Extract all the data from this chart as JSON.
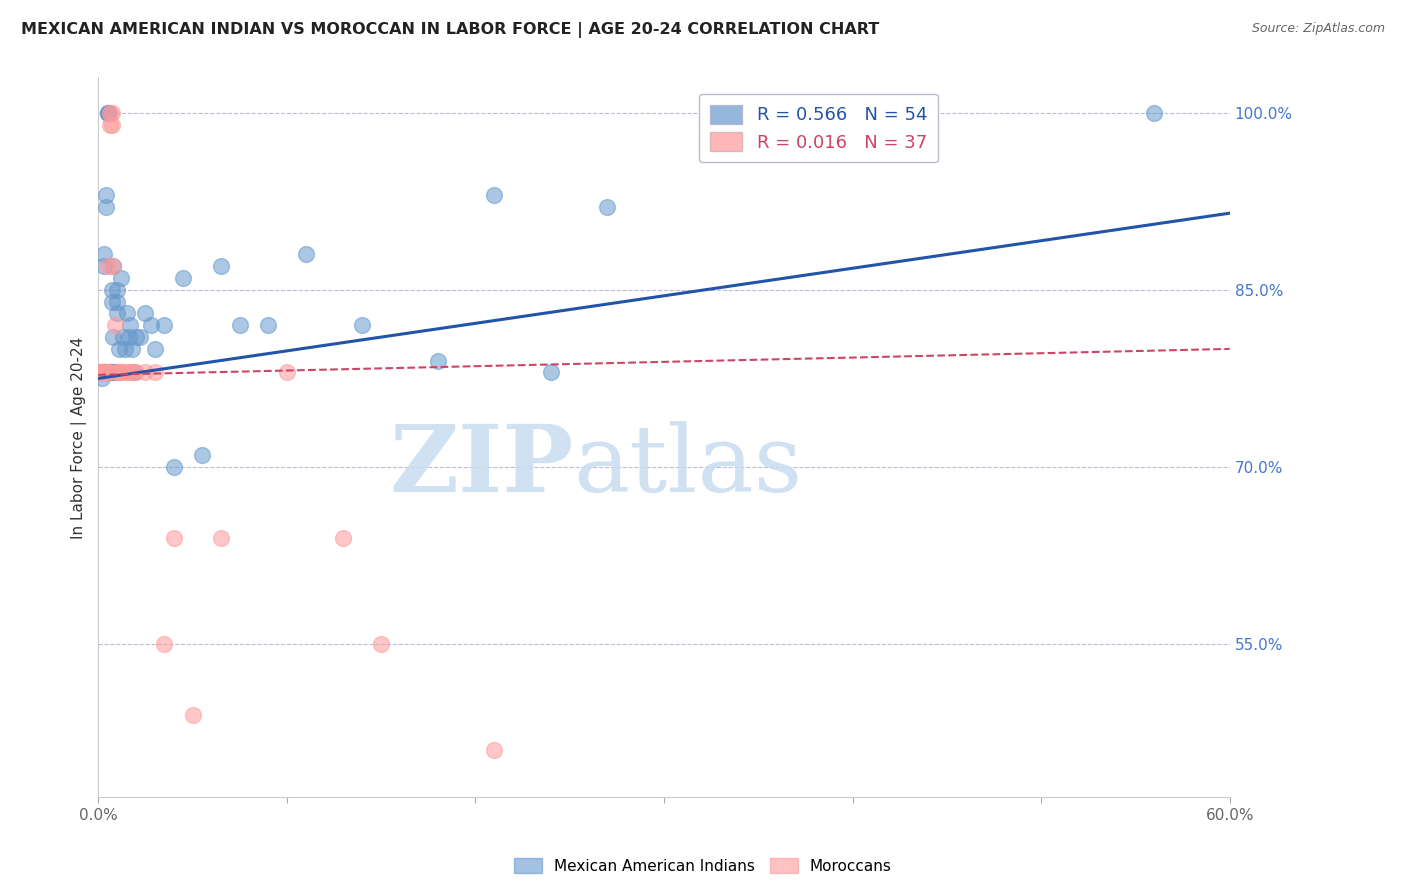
{
  "title": "MEXICAN AMERICAN INDIAN VS MOROCCAN IN LABOR FORCE | AGE 20-24 CORRELATION CHART",
  "source": "Source: ZipAtlas.com",
  "ylabel": "In Labor Force | Age 20-24",
  "xlim": [
    0.0,
    0.6
  ],
  "ylim": [
    0.42,
    1.03
  ],
  "xticks": [
    0.0,
    0.1,
    0.2,
    0.3,
    0.4,
    0.5,
    0.6
  ],
  "xticklabels": [
    "0.0%",
    "",
    "",
    "",
    "",
    "",
    "60.0%"
  ],
  "yticks_right": [
    0.55,
    0.7,
    0.85,
    1.0
  ],
  "ytick_right_labels": [
    "55.0%",
    "70.0%",
    "85.0%",
    "100.0%"
  ],
  "blue_color": "#6699CC",
  "pink_color": "#FF9999",
  "blue_line_color": "#2255AA",
  "pink_line_color": "#CC4466",
  "legend_R_blue": "R = 0.566",
  "legend_N_blue": "N = 54",
  "legend_R_pink": "R = 0.016",
  "legend_N_pink": "N = 37",
  "watermark_zip": "ZIP",
  "watermark_atlas": "atlas",
  "blue_trend_x0": 0.0,
  "blue_trend_y0": 0.775,
  "blue_trend_x1": 0.6,
  "blue_trend_y1": 0.915,
  "pink_trend_x0": 0.0,
  "pink_trend_y0": 0.778,
  "pink_trend_x1": 0.6,
  "pink_trend_y1": 0.8,
  "blue_scatter_x": [
    0.001,
    0.002,
    0.002,
    0.003,
    0.003,
    0.003,
    0.004,
    0.004,
    0.004,
    0.004,
    0.005,
    0.005,
    0.005,
    0.006,
    0.006,
    0.006,
    0.007,
    0.007,
    0.007,
    0.008,
    0.008,
    0.009,
    0.009,
    0.01,
    0.01,
    0.01,
    0.011,
    0.012,
    0.013,
    0.014,
    0.015,
    0.016,
    0.017,
    0.018,
    0.019,
    0.02,
    0.022,
    0.025,
    0.028,
    0.03,
    0.035,
    0.04,
    0.045,
    0.055,
    0.065,
    0.075,
    0.09,
    0.11,
    0.14,
    0.18,
    0.21,
    0.24,
    0.27,
    0.56
  ],
  "blue_scatter_y": [
    0.78,
    0.78,
    0.775,
    0.88,
    0.87,
    0.78,
    0.93,
    0.92,
    0.78,
    0.78,
    1.0,
    1.0,
    1.0,
    0.78,
    0.78,
    0.78,
    0.85,
    0.84,
    0.78,
    0.87,
    0.81,
    0.78,
    0.78,
    0.85,
    0.84,
    0.83,
    0.8,
    0.86,
    0.81,
    0.8,
    0.83,
    0.81,
    0.82,
    0.8,
    0.78,
    0.81,
    0.81,
    0.83,
    0.82,
    0.8,
    0.82,
    0.7,
    0.86,
    0.71,
    0.87,
    0.82,
    0.82,
    0.88,
    0.82,
    0.79,
    0.93,
    0.78,
    0.92,
    1.0
  ],
  "pink_scatter_x": [
    0.001,
    0.001,
    0.002,
    0.002,
    0.003,
    0.003,
    0.003,
    0.004,
    0.004,
    0.005,
    0.005,
    0.005,
    0.006,
    0.006,
    0.007,
    0.007,
    0.008,
    0.009,
    0.01,
    0.01,
    0.011,
    0.012,
    0.013,
    0.015,
    0.016,
    0.018,
    0.02,
    0.025,
    0.03,
    0.035,
    0.04,
    0.05,
    0.065,
    0.1,
    0.13,
    0.15,
    0.21
  ],
  "pink_scatter_y": [
    0.78,
    0.78,
    0.78,
    0.78,
    0.78,
    0.78,
    0.78,
    0.78,
    0.78,
    0.78,
    0.87,
    0.78,
    0.99,
    1.0,
    0.99,
    1.0,
    0.87,
    0.82,
    0.78,
    0.78,
    0.78,
    0.78,
    0.78,
    0.78,
    0.78,
    0.78,
    0.78,
    0.78,
    0.78,
    0.55,
    0.64,
    0.49,
    0.64,
    0.78,
    0.64,
    0.55,
    0.46
  ]
}
